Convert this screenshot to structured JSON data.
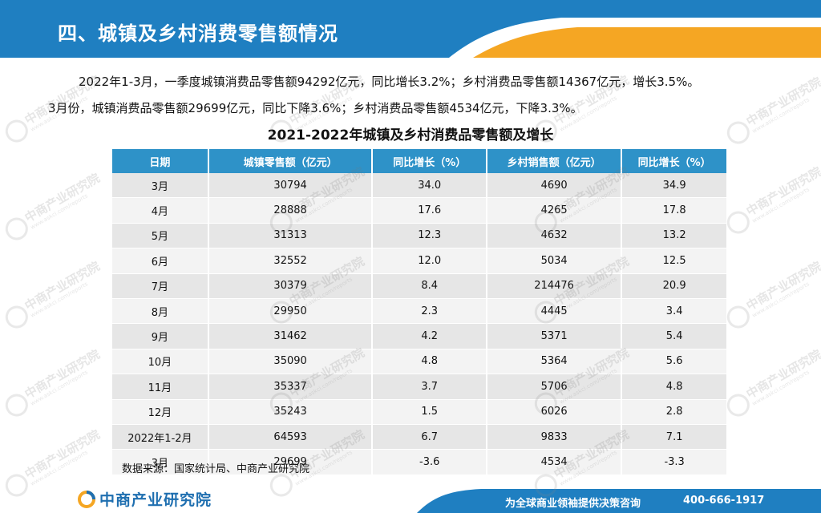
{
  "header": {
    "title": "四、城镇及乡村消费零售额情况"
  },
  "intro": {
    "line1": "2022年1-3月，一季度城镇消费品零售额94292亿元，同比增长3.2%；乡村消费品零售额14367亿元，增长3.5%。",
    "line2": "3月份，城镇消费品零售额29699亿元，同比下降3.6%；乡村消费品零售额4534亿元，下降3.3%。"
  },
  "table": {
    "title": "2021-2022年城镇及乡村消费品零售额及增长",
    "columns": [
      "日期",
      "城镇零售额（亿元）",
      "同比增长（%）",
      "乡村销售额（亿元）",
      "同比增长（%）"
    ],
    "rows": [
      [
        "3月",
        "30794",
        "34.0",
        "4690",
        "34.9"
      ],
      [
        "4月",
        "28888",
        "17.6",
        "4265",
        "17.8"
      ],
      [
        "5月",
        "31313",
        "12.3",
        "4632",
        "13.2"
      ],
      [
        "6月",
        "32552",
        "12.0",
        "5034",
        "12.5"
      ],
      [
        "7月",
        "30379",
        "8.4",
        "214476",
        "20.9"
      ],
      [
        "8月",
        "29950",
        "2.3",
        "4445",
        "3.4"
      ],
      [
        "9月",
        "31462",
        "4.2",
        "5371",
        "5.4"
      ],
      [
        "10月",
        "35090",
        "4.8",
        "5364",
        "5.6"
      ],
      [
        "11月",
        "35337",
        "3.7",
        "5706",
        "4.8"
      ],
      [
        "12月",
        "35243",
        "1.5",
        "6026",
        "2.8"
      ],
      [
        "2022年1-2月",
        "64593",
        "6.7",
        "9833",
        "7.1"
      ],
      [
        "3月",
        "29699",
        "-3.6",
        "4534",
        "-3.3"
      ]
    ]
  },
  "source": "数据来源：国家统计局、中商产业研究院",
  "footer": {
    "logo_text": "中商产业研究院",
    "slogan": "为全球商业领袖提供决策咨询",
    "phone": "400-666-1917"
  },
  "watermark": {
    "text": "中商产业研究院",
    "subtext": "www.askci.com/reports"
  },
  "colors": {
    "banner_blue": "#1f7fc1",
    "banner_orange": "#f5a623",
    "header_row": "#2e92c8",
    "footer_blue": "#1f7fc1"
  }
}
